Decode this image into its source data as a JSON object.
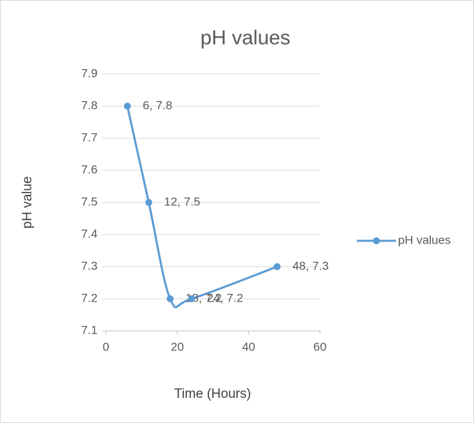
{
  "chart_data": {
    "type": "scatter-smooth",
    "title": "pH values",
    "x_label": "Time (Hours)",
    "y_label": "pH value",
    "x": [
      6,
      12,
      18,
      24,
      48
    ],
    "series": [
      {
        "name": "pH values",
        "color": "#5b9bd5",
        "values": [
          7.8,
          7.5,
          7.2,
          7.2,
          7.3
        ],
        "value_labels": [
          "6, 7.8",
          "12, 7.5",
          "18, 7.2",
          "24, 7.2",
          "48, 7.3"
        ]
      }
    ],
    "xlim": [
      0,
      60
    ],
    "xticks": [
      0,
      20,
      40,
      60
    ],
    "ylim": [
      7.1,
      7.9
    ],
    "yticks": [
      7.1,
      7.2,
      7.3,
      7.4,
      7.5,
      7.6,
      7.7,
      7.8,
      7.9
    ],
    "grid": true,
    "legend": "right"
  }
}
